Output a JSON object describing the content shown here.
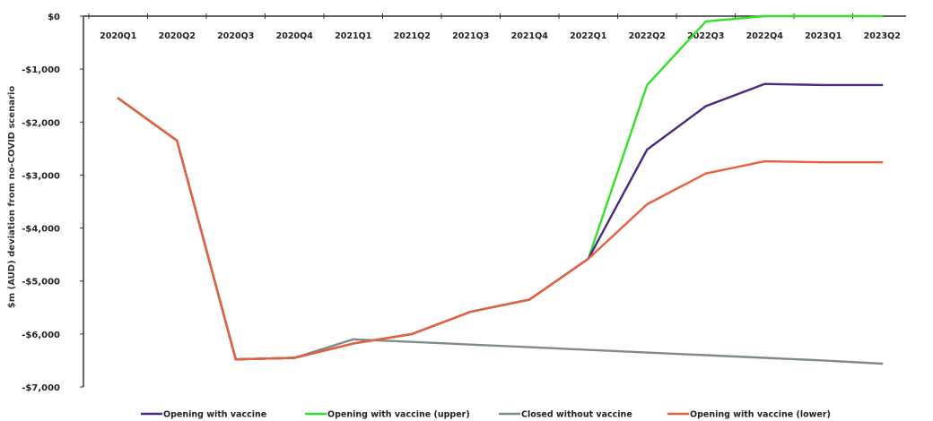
{
  "chart_data": {
    "type": "line",
    "title": "",
    "xlabel": "",
    "ylabel": "$m (AUD) deviation from no-COVID scenario",
    "ylim": [
      -7000,
      0
    ],
    "yticks": [
      0,
      -1000,
      -2000,
      -3000,
      -4000,
      -5000,
      -6000,
      -7000
    ],
    "ytick_labels": [
      "$0",
      "-$1,000",
      "-$2,000",
      "-$3,000",
      "-$4,000",
      "-$5,000",
      "-$6,000",
      "-$7,000"
    ],
    "categories": [
      "2020Q1",
      "2020Q2",
      "2020Q3",
      "2020Q4",
      "2021Q1",
      "2021Q2",
      "2021Q3",
      "2021Q4",
      "2022Q1",
      "2022Q2",
      "2022Q3",
      "2022Q4",
      "2023Q1",
      "2023Q2"
    ],
    "legend_position": "bottom",
    "grid": false,
    "series": [
      {
        "name": "Opening with vaccine",
        "color": "#4b2a7f",
        "values": [
          -1550,
          -2350,
          -6480,
          -6450,
          -6180,
          -6000,
          -5580,
          -5350,
          -4580,
          -2520,
          -1700,
          -1280,
          -1300,
          -1300
        ]
      },
      {
        "name": "Opening with vaccine (upper)",
        "color": "#33e02a",
        "values": [
          -1550,
          -2350,
          -6480,
          -6450,
          -6180,
          -6000,
          -5580,
          -5350,
          -4580,
          -1300,
          -100,
          0,
          0,
          0
        ]
      },
      {
        "name": "Closed without vaccine",
        "color": "#7f8a8f",
        "values": [
          -1550,
          -2350,
          -6480,
          -6450,
          -6100,
          -6150,
          -6200,
          -6250,
          -6300,
          -6350,
          -6400,
          -6450,
          -6500,
          -6560
        ]
      },
      {
        "name": "Opening with vaccine (lower)",
        "color": "#e8613f",
        "values": [
          -1550,
          -2350,
          -6480,
          -6450,
          -6180,
          -6000,
          -5580,
          -5350,
          -4580,
          -3550,
          -2970,
          -2740,
          -2760,
          -2760
        ]
      }
    ]
  }
}
